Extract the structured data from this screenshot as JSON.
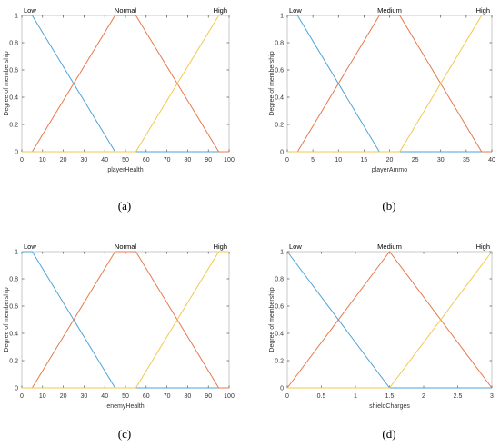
{
  "colors": {
    "low": "#4DA3D9",
    "mid": "#E8784A",
    "high": "#F2C84B",
    "axis": "#333333",
    "frame": "#bbbbbb"
  },
  "chart_data": [
    {
      "type": "line",
      "caption": "(a)",
      "xlabel": "playerHealth",
      "ylabel": "Degree of membership",
      "xlim": [
        0,
        100
      ],
      "ylim": [
        0,
        1
      ],
      "xticks": [
        0,
        10,
        20,
        30,
        40,
        50,
        60,
        70,
        80,
        90,
        100
      ],
      "yticks": [
        0,
        0.2,
        0.4,
        0.6,
        0.8,
        1
      ],
      "series": [
        {
          "name": "Low",
          "x": [
            0,
            5,
            45,
            100
          ],
          "y": [
            1,
            1,
            0,
            0
          ]
        },
        {
          "name": "Normal",
          "x": [
            5,
            45,
            55,
            95,
            100
          ],
          "y": [
            0,
            1,
            1,
            0,
            0
          ]
        },
        {
          "name": "High",
          "x": [
            0,
            55,
            95,
            100
          ],
          "y": [
            0,
            0,
            1,
            1
          ]
        }
      ]
    },
    {
      "type": "line",
      "caption": "(b)",
      "xlabel": "playerAmmo",
      "ylabel": "Degree of membership",
      "xlim": [
        0,
        40
      ],
      "ylim": [
        0,
        1
      ],
      "xticks": [
        0,
        5,
        10,
        15,
        20,
        25,
        30,
        35,
        40
      ],
      "yticks": [
        0,
        0.2,
        0.4,
        0.6,
        0.8,
        1
      ],
      "series": [
        {
          "name": "Low",
          "x": [
            0,
            2,
            18,
            40
          ],
          "y": [
            1,
            1,
            0,
            0
          ]
        },
        {
          "name": "Medium",
          "x": [
            2,
            18,
            22,
            38,
            40
          ],
          "y": [
            0,
            1,
            1,
            0,
            0
          ]
        },
        {
          "name": "High",
          "x": [
            0,
            22,
            38,
            40
          ],
          "y": [
            0,
            0,
            1,
            1
          ]
        }
      ]
    },
    {
      "type": "line",
      "caption": "(c)",
      "xlabel": "enemyHealth",
      "ylabel": "Degree of membership",
      "xlim": [
        0,
        100
      ],
      "ylim": [
        0,
        1
      ],
      "xticks": [
        0,
        10,
        20,
        30,
        40,
        50,
        60,
        70,
        80,
        90,
        100
      ],
      "yticks": [
        0,
        0.2,
        0.4,
        0.6,
        0.8,
        1
      ],
      "series": [
        {
          "name": "Low",
          "x": [
            0,
            5,
            45,
            100
          ],
          "y": [
            1,
            1,
            0,
            0
          ]
        },
        {
          "name": "Normal",
          "x": [
            5,
            45,
            55,
            95,
            100
          ],
          "y": [
            0,
            1,
            1,
            0,
            0
          ]
        },
        {
          "name": "High",
          "x": [
            0,
            55,
            95,
            100
          ],
          "y": [
            0,
            0,
            1,
            1
          ]
        }
      ]
    },
    {
      "type": "line",
      "caption": "(d)",
      "xlabel": "shieldCharges",
      "ylabel": "Degree of membership",
      "xlim": [
        0,
        3
      ],
      "ylim": [
        0,
        1
      ],
      "xticks": [
        0,
        0.5,
        1,
        1.5,
        2,
        2.5,
        3
      ],
      "yticks": [
        0,
        0.2,
        0.4,
        0.6,
        0.8,
        1
      ],
      "series": [
        {
          "name": "Low",
          "x": [
            0,
            1.5,
            3
          ],
          "y": [
            1,
            0,
            0
          ]
        },
        {
          "name": "Medium",
          "x": [
            0,
            1.5,
            3
          ],
          "y": [
            0,
            1,
            0
          ]
        },
        {
          "name": "High",
          "x": [
            0,
            1.5,
            3
          ],
          "y": [
            0,
            0,
            1
          ]
        }
      ]
    }
  ]
}
